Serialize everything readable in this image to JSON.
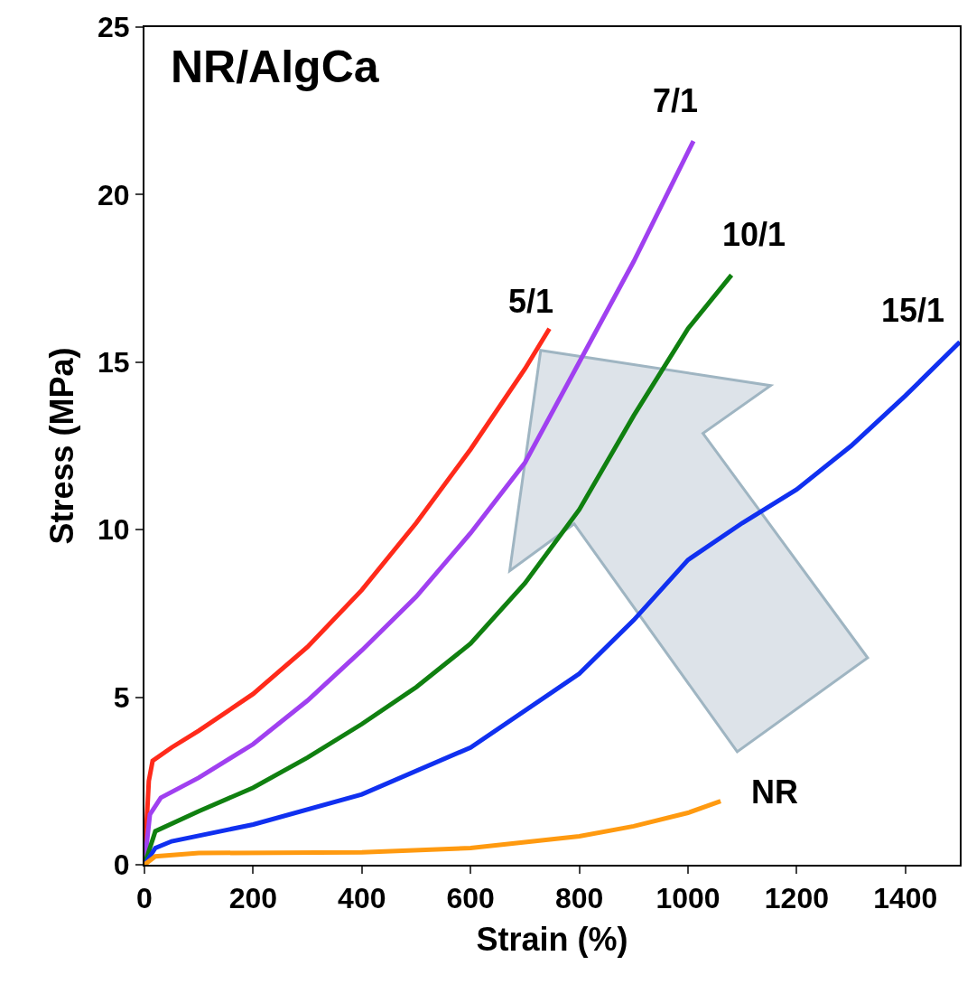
{
  "chart_data": {
    "type": "line",
    "title": "NR/AlgCa",
    "xlabel": "Strain (%)",
    "ylabel": "Stress (MPa)",
    "xlim": [
      0,
      1500
    ],
    "ylim": [
      0,
      25
    ],
    "xticks": [
      0,
      200,
      400,
      600,
      800,
      1000,
      1200,
      1400
    ],
    "yticks": [
      0,
      5,
      10,
      15,
      20,
      25
    ],
    "grid": false,
    "legend": false,
    "marker": "none",
    "line_style": "solid",
    "series": [
      {
        "name": "5/1",
        "color": "#ff2a1a",
        "x": [
          0,
          8,
          15,
          50,
          100,
          200,
          300,
          400,
          500,
          600,
          700,
          745
        ],
        "values": [
          0,
          2.5,
          3.1,
          3.5,
          4.0,
          5.1,
          6.5,
          8.2,
          10.2,
          12.4,
          14.8,
          16.0
        ]
      },
      {
        "name": "7/1",
        "color": "#a040f0",
        "x": [
          0,
          10,
          30,
          100,
          200,
          300,
          400,
          500,
          600,
          700,
          800,
          900,
          1010
        ],
        "values": [
          0,
          1.5,
          2.0,
          2.6,
          3.6,
          4.9,
          6.4,
          8.0,
          9.9,
          12.0,
          15.0,
          18.0,
          21.6
        ]
      },
      {
        "name": "10/1",
        "color": "#108010",
        "x": [
          0,
          20,
          100,
          200,
          300,
          400,
          500,
          600,
          700,
          800,
          900,
          1000,
          1080
        ],
        "values": [
          0,
          1.0,
          1.6,
          2.3,
          3.2,
          4.2,
          5.3,
          6.6,
          8.4,
          10.6,
          13.4,
          16.0,
          17.6
        ]
      },
      {
        "name": "15/1",
        "color": "#1030f0",
        "x": [
          0,
          20,
          50,
          200,
          400,
          600,
          800,
          900,
          1000,
          1100,
          1200,
          1300,
          1400,
          1500
        ],
        "values": [
          0,
          0.5,
          0.7,
          1.2,
          2.1,
          3.5,
          5.7,
          7.3,
          9.1,
          10.2,
          11.2,
          12.5,
          14.0,
          15.6
        ]
      },
      {
        "name": "NR",
        "color": "#ff9a10",
        "x": [
          0,
          20,
          100,
          400,
          600,
          800,
          900,
          1000,
          1060
        ],
        "values": [
          0,
          0.25,
          0.35,
          0.37,
          0.5,
          0.85,
          1.15,
          1.55,
          1.9
        ]
      }
    ]
  }
}
